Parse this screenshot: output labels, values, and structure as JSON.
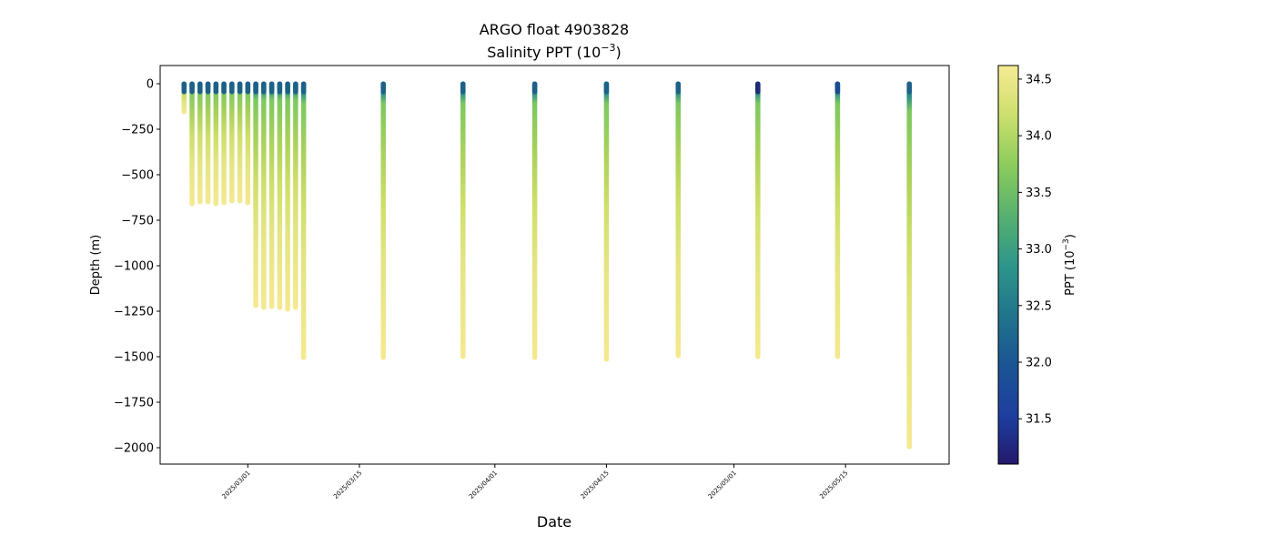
{
  "chart_data": {
    "type": "scatter",
    "title_line1": "ARGO float 4903828",
    "title_line2_main": "Salinity PPT (10",
    "title_line2_sup": "−3",
    "title_line2_end": ")",
    "xlabel": "Date",
    "ylabel": "Depth (m)",
    "colorbar_label_main": "PPT (10",
    "colorbar_label_sup": "−3",
    "colorbar_label_end": ")",
    "colormap": "viridis-like (dark blue → teal → green → pale yellow)",
    "colorbar_range": [
      31.1,
      34.62
    ],
    "colorbar_ticks": [
      31.5,
      32.0,
      32.5,
      33.0,
      33.5,
      34.0,
      34.5
    ],
    "colorbar_tick_labels": [
      "31.5",
      "32.0",
      "32.5",
      "33.0",
      "33.5",
      "34.0",
      "34.5"
    ],
    "xlim": [
      "2025-02-18",
      "2025-05-28"
    ],
    "x_ticks": [
      "2025-03-01",
      "2025-03-15",
      "2025-04-01",
      "2025-04-15",
      "2025-05-01",
      "2025-05-15"
    ],
    "ylim": [
      -2090,
      100
    ],
    "y_ticks": [
      0,
      -250,
      -500,
      -750,
      -1000,
      -1250,
      -1500,
      -1750,
      -2000
    ],
    "y_tick_labels": [
      "0",
      "−250",
      "−500",
      "−750",
      "−1000",
      "−1250",
      "−1500",
      "−1750",
      "−2000"
    ],
    "profiles": [
      {
        "date": "2025-02-21",
        "max_depth": -155,
        "surface_salinity": 32.3
      },
      {
        "date": "2025-02-22",
        "max_depth": -660,
        "surface_salinity": 32.3
      },
      {
        "date": "2025-02-23",
        "max_depth": -650,
        "surface_salinity": 32.3
      },
      {
        "date": "2025-02-24",
        "max_depth": -650,
        "surface_salinity": 32.3
      },
      {
        "date": "2025-02-25",
        "max_depth": -660,
        "surface_salinity": 32.3
      },
      {
        "date": "2025-02-26",
        "max_depth": -655,
        "surface_salinity": 32.3
      },
      {
        "date": "2025-02-27",
        "max_depth": -645,
        "surface_salinity": 32.3
      },
      {
        "date": "2025-02-28",
        "max_depth": -645,
        "surface_salinity": 32.3
      },
      {
        "date": "2025-03-01",
        "max_depth": -655,
        "surface_salinity": 32.3
      },
      {
        "date": "2025-03-02",
        "max_depth": -1220,
        "surface_salinity": 32.3
      },
      {
        "date": "2025-03-03",
        "max_depth": -1230,
        "surface_salinity": 32.3
      },
      {
        "date": "2025-03-04",
        "max_depth": -1225,
        "surface_salinity": 32.3
      },
      {
        "date": "2025-03-05",
        "max_depth": -1230,
        "surface_salinity": 32.3
      },
      {
        "date": "2025-03-06",
        "max_depth": -1240,
        "surface_salinity": 32.3
      },
      {
        "date": "2025-03-07",
        "max_depth": -1230,
        "surface_salinity": 32.3
      },
      {
        "date": "2025-03-08",
        "max_depth": -1505,
        "surface_salinity": 32.3
      },
      {
        "date": "2025-03-18",
        "max_depth": -1505,
        "surface_salinity": 32.2
      },
      {
        "date": "2025-03-28",
        "max_depth": -1500,
        "surface_salinity": 32.2
      },
      {
        "date": "2025-04-06",
        "max_depth": -1505,
        "surface_salinity": 32.2
      },
      {
        "date": "2025-04-15",
        "max_depth": -1515,
        "surface_salinity": 32.2
      },
      {
        "date": "2025-04-24",
        "max_depth": -1495,
        "surface_salinity": 32.2
      },
      {
        "date": "2025-05-04",
        "max_depth": -1500,
        "surface_salinity": 31.3
      },
      {
        "date": "2025-05-14",
        "max_depth": -1500,
        "surface_salinity": 31.8
      },
      {
        "date": "2025-05-23",
        "max_depth": -1995,
        "surface_salinity": 32.1
      }
    ]
  }
}
